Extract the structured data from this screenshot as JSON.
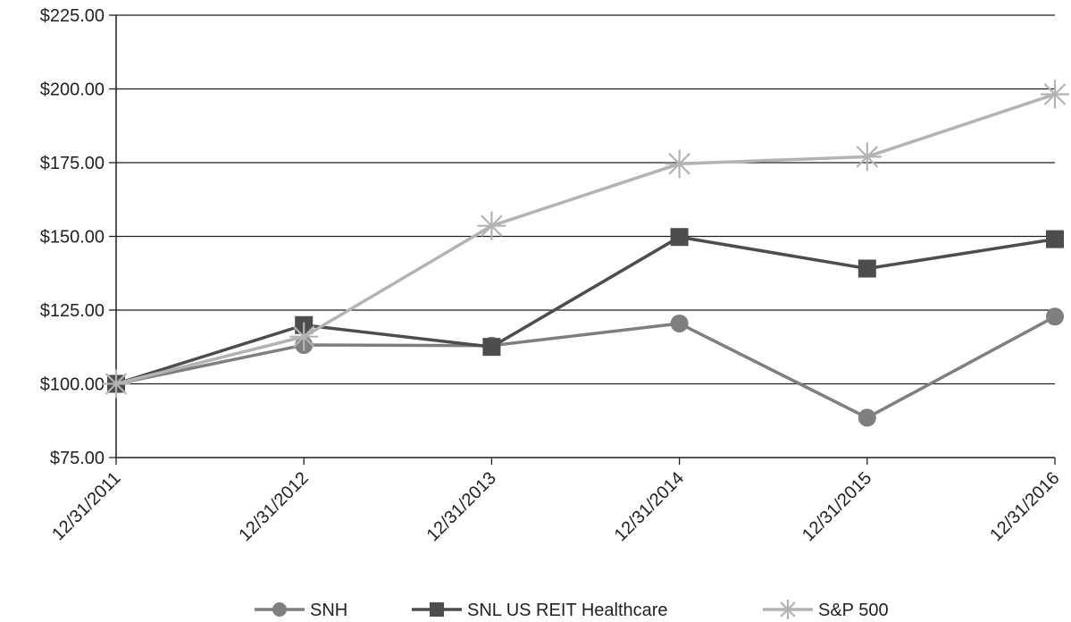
{
  "chart_data": {
    "type": "line",
    "title": "",
    "xlabel": "",
    "ylabel": "",
    "categories": [
      "12/31/2011",
      "12/31/2012",
      "12/31/2013",
      "12/31/2014",
      "12/31/2015",
      "12/31/2016"
    ],
    "y_ticks": [
      "$75.00",
      "$100.00",
      "$125.00",
      "$150.00",
      "$175.00",
      "$200.00",
      "$225.00"
    ],
    "ylim": [
      75,
      225
    ],
    "y_tick_values": [
      75,
      100,
      125,
      150,
      175,
      200,
      225
    ],
    "grid": true,
    "legend_position": "bottom-center",
    "series": [
      {
        "name": "SNH",
        "marker": "circle",
        "color": "#7f7f7f",
        "values": [
          100.0,
          113.17,
          112.97,
          120.46,
          88.51,
          122.8
        ]
      },
      {
        "name": "SNL US REIT Healthcare",
        "marker": "square",
        "color": "#4d4d4d",
        "values": [
          100.0,
          119.92,
          112.53,
          149.79,
          139.09,
          149.06
        ]
      },
      {
        "name": "S&P 500",
        "marker": "asterisk",
        "color": "#b3b3b3",
        "values": [
          100.0,
          116.0,
          153.58,
          174.6,
          177.01,
          198.18
        ]
      }
    ]
  }
}
